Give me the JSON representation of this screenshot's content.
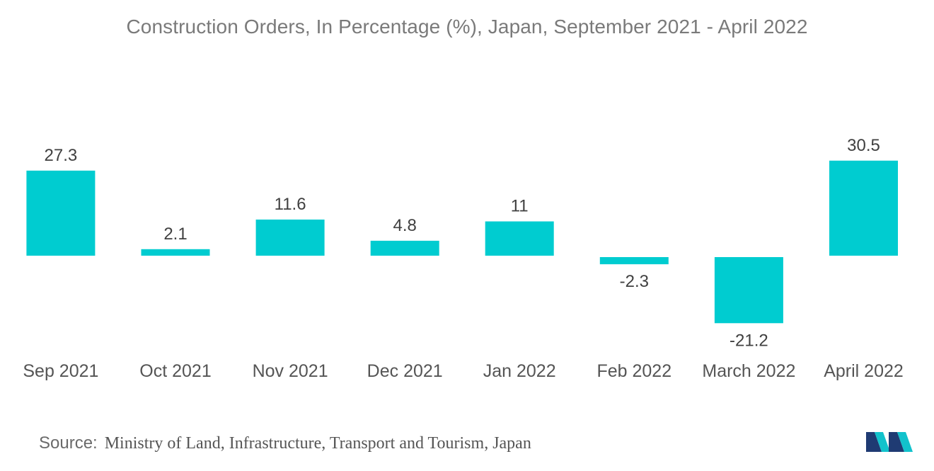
{
  "chart_data": {
    "type": "bar",
    "title": "Construction Orders, In Percentage (%), Japan, September 2021 - April 2022",
    "categories": [
      "Sep 2021",
      "Oct 2021",
      "Nov 2021",
      "Dec 2021",
      "Jan 2022",
      "Feb 2022",
      "March 2022",
      "April 2022"
    ],
    "values": [
      27.3,
      2.1,
      11.6,
      4.8,
      11,
      -2.3,
      -21.2,
      30.5
    ],
    "value_labels": [
      "27.3",
      "2.1",
      "11.6",
      "4.8",
      "11",
      "-2.3",
      "-21.2",
      "30.5"
    ],
    "xlabel": "",
    "ylabel": "",
    "ylim": [
      -21.2,
      30.5
    ],
    "grid": false,
    "bar_color": "#00ccd0"
  },
  "source": {
    "label": "Source:",
    "text": "Ministry of Land, Infrastructure, Transport and Tourism, Japan"
  },
  "logo": {
    "icon": "mordor-intelligence-logo-icon",
    "colors": [
      "#1f3b73",
      "#12c2cc"
    ]
  }
}
